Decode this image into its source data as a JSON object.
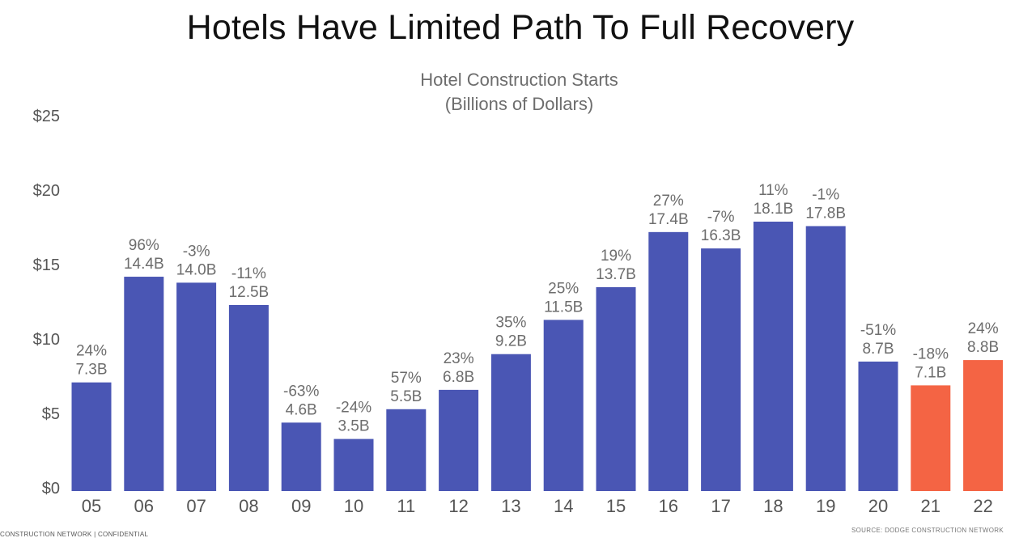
{
  "page": {
    "title": "Hotels Have Limited Path To Full Recovery",
    "footer_left": "CONSTRUCTION NETWORK  |  CONFIDENTIAL",
    "footer_right": "SOURCE: DODGE CONSTRUCTION NETWORK"
  },
  "chart_data": {
    "type": "bar",
    "title": "Hotel Construction Starts",
    "subtitle": "(Billions of Dollars)",
    "xlabel": "",
    "ylabel": "",
    "ylim": [
      0,
      25
    ],
    "yticks": [
      "$0",
      "$5",
      "$10",
      "$15",
      "$20",
      "$25"
    ],
    "grid": false,
    "categories": [
      "05",
      "06",
      "07",
      "08",
      "09",
      "10",
      "11",
      "12",
      "13",
      "14",
      "15",
      "16",
      "17",
      "18",
      "19",
      "20",
      "21",
      "22"
    ],
    "values": [
      7.3,
      14.4,
      14.0,
      12.5,
      4.6,
      3.5,
      5.5,
      6.8,
      9.2,
      11.5,
      13.7,
      17.4,
      16.3,
      18.1,
      17.8,
      8.7,
      7.1,
      8.8
    ],
    "value_labels": [
      "7.3B",
      "14.4B",
      "14.0B",
      "12.5B",
      "4.6B",
      "3.5B",
      "5.5B",
      "6.8B",
      "9.2B",
      "11.5B",
      "13.7B",
      "17.4B",
      "16.3B",
      "18.1B",
      "17.8B",
      "8.7B",
      "7.1B",
      "8.8B"
    ],
    "pct_labels": [
      "24%",
      "96%",
      "-3%",
      "-11%",
      "-63%",
      "-24%",
      "57%",
      "23%",
      "35%",
      "25%",
      "19%",
      "27%",
      "-7%",
      "11%",
      "-1%",
      "-51%",
      "-18%",
      "24%"
    ],
    "forecast": [
      false,
      false,
      false,
      false,
      false,
      false,
      false,
      false,
      false,
      false,
      false,
      false,
      false,
      false,
      false,
      false,
      true,
      true
    ],
    "colors": {
      "actual": "#4a56b4",
      "forecast": "#f46444",
      "label": "#6d6d6d",
      "tick": "#555555"
    }
  }
}
